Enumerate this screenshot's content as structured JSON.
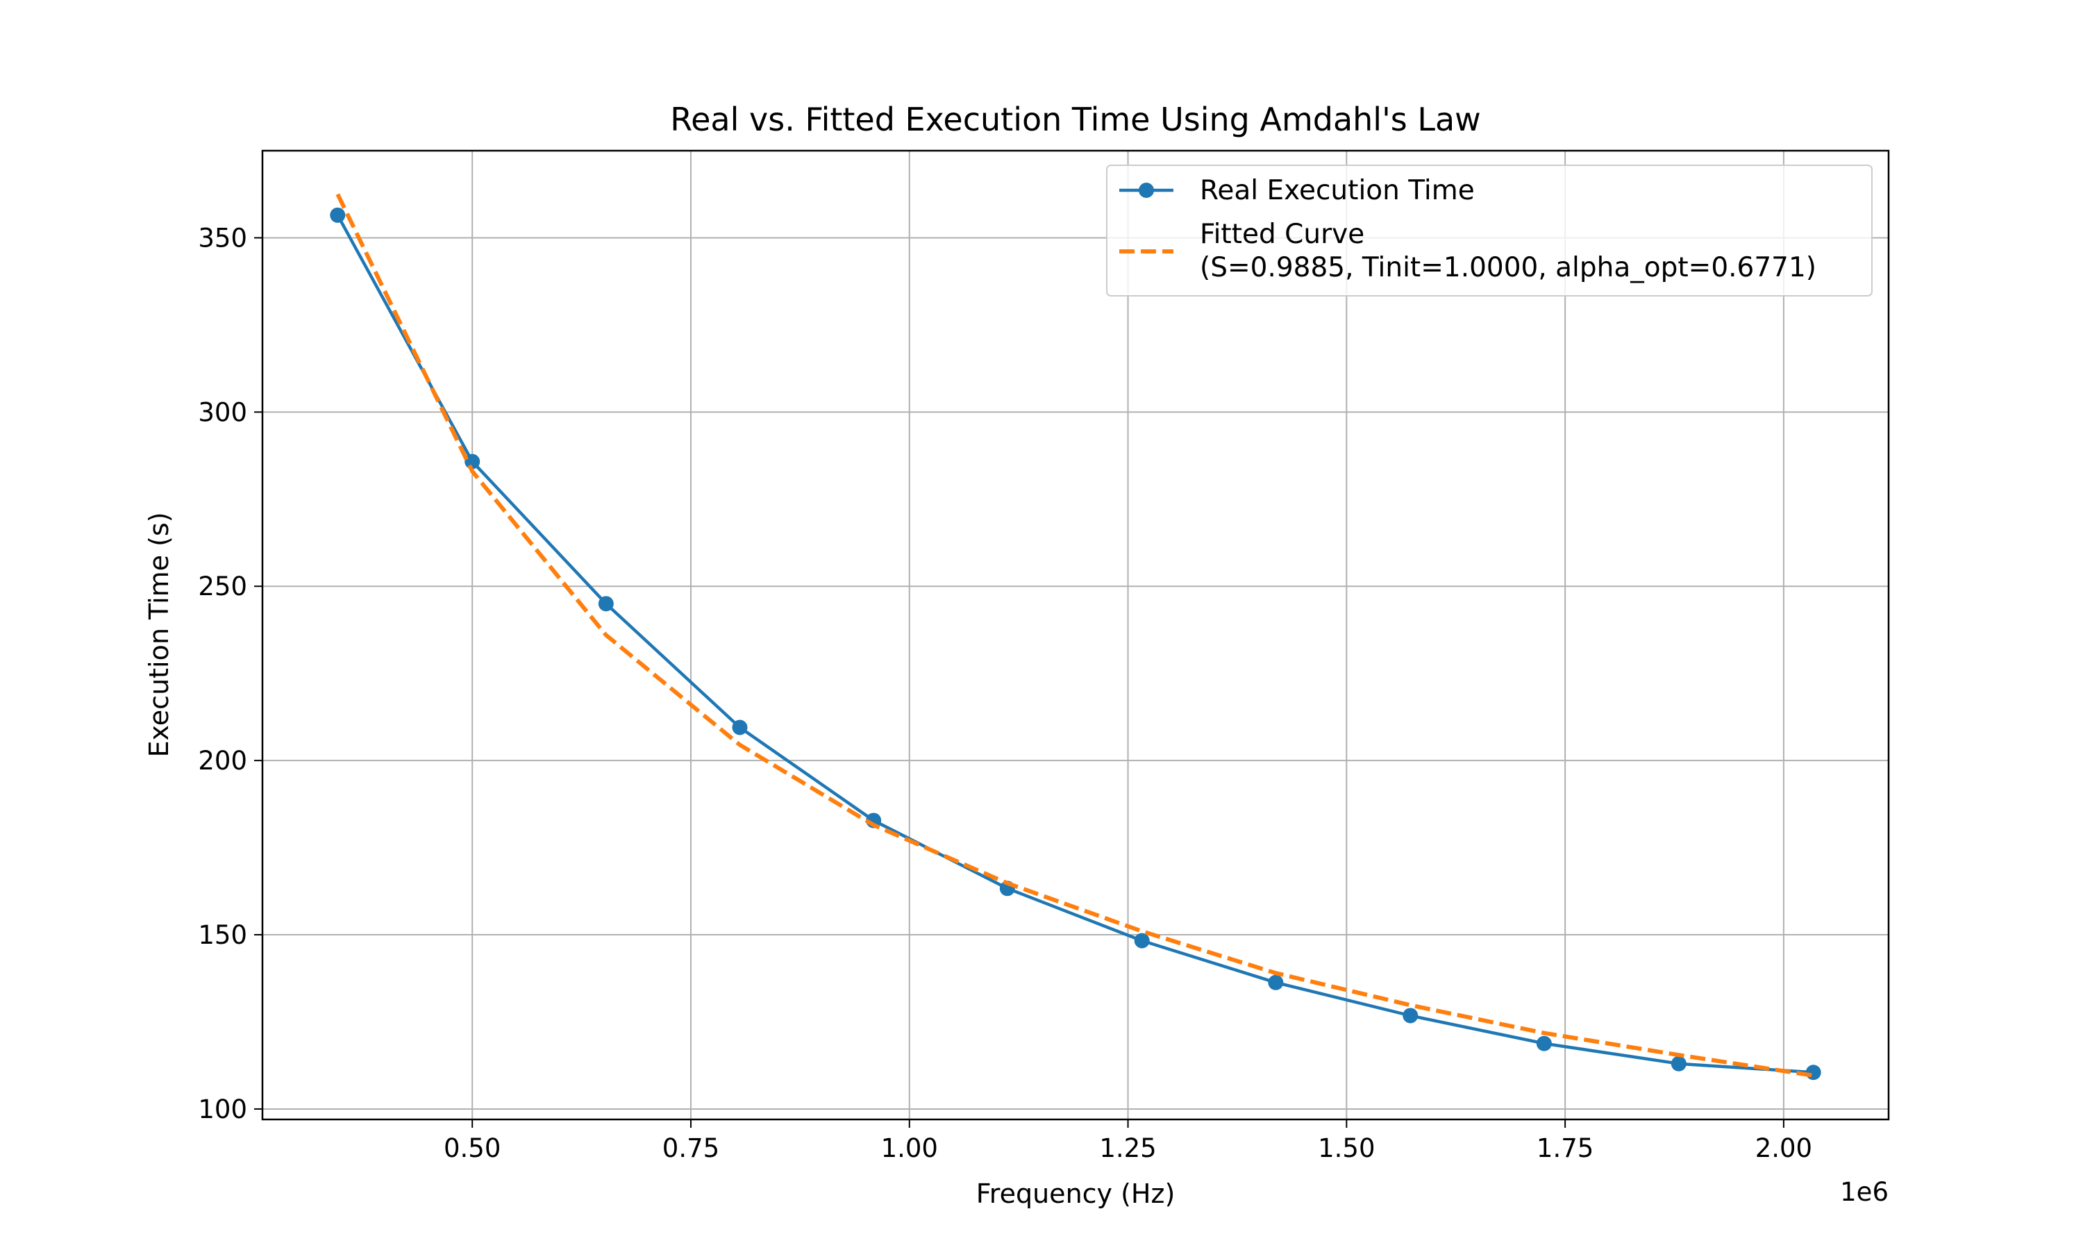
{
  "chart_data": {
    "type": "line",
    "title": "Real vs. Fitted Execution Time Using Amdahl's Law",
    "xlabel": "Frequency (Hz)",
    "ylabel": "Execution Time (s)",
    "x_offset_label": "1e6",
    "x_scale": 1000000,
    "xlim": [
      0.26,
      2.12
    ],
    "ylim": [
      97,
      375
    ],
    "xticks": [
      0.5,
      0.75,
      1.0,
      1.25,
      1.5,
      1.75,
      2.0
    ],
    "xtick_labels": [
      "0.50",
      "0.75",
      "1.00",
      "1.25",
      "1.50",
      "1.75",
      "2.00"
    ],
    "yticks": [
      100,
      150,
      200,
      250,
      300,
      350
    ],
    "ytick_labels": [
      "100",
      "150",
      "200",
      "250",
      "300",
      "350"
    ],
    "grid": true,
    "legend_position": "top-right",
    "series": [
      {
        "name": "Real Execution Time",
        "style": "solid-marker",
        "color": "#1f77b4",
        "x": [
          0.346,
          0.5,
          0.653,
          0.806,
          0.959,
          1.112,
          1.266,
          1.419,
          1.573,
          1.726,
          1.88,
          2.034
        ],
        "y": [
          356.5,
          285.8,
          245.0,
          209.5,
          182.8,
          163.3,
          148.3,
          136.3,
          126.8,
          118.8,
          113.0,
          110.5
        ]
      },
      {
        "name": "Fitted Curve\n(S=0.9885, Tinit=1.0000, alpha_opt=0.6771)",
        "style": "dashed",
        "color": "#ff7f0e",
        "x": [
          0.346,
          0.5,
          0.653,
          0.806,
          0.959,
          1.112,
          1.266,
          1.419,
          1.573,
          1.726,
          1.88,
          2.034
        ],
        "y": [
          362.5,
          283.0,
          236.0,
          204.5,
          181.5,
          164.8,
          151.0,
          139.0,
          129.8,
          121.8,
          115.5,
          109.6
        ]
      }
    ]
  }
}
